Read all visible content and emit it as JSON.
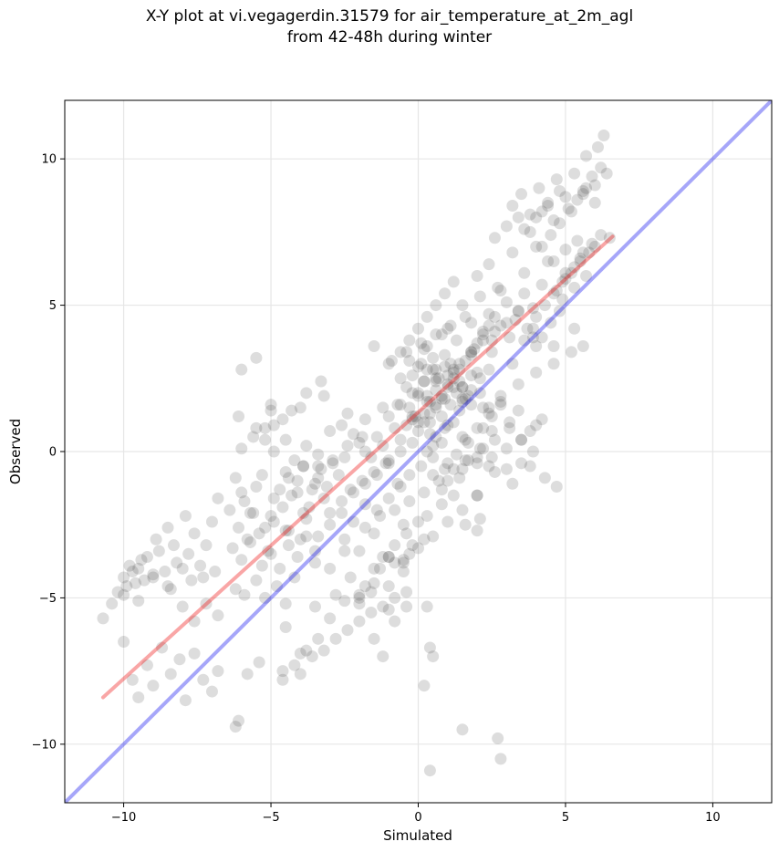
{
  "chart_data": {
    "type": "scatter",
    "title": "X-Y plot at vi.vegagerdin.31579 for air_temperature_at_2m_agl",
    "subtitle": "from 42-48h during winter",
    "xlabel": "Simulated",
    "ylabel": "Observed",
    "xlim": [
      -12,
      12
    ],
    "ylim": [
      -12,
      12
    ],
    "xticks": [
      -10,
      -5,
      0,
      5,
      10
    ],
    "yticks": [
      -10,
      -5,
      0,
      5,
      10
    ],
    "xtick_labels": [
      "−10",
      "−5",
      "0",
      "5",
      "10"
    ],
    "ytick_labels": [
      "−10",
      "−5",
      "0",
      "5",
      "10"
    ],
    "grid": true,
    "point_color": "#333333",
    "identity_line": {
      "x": [
        -12,
        12
      ],
      "y": [
        -12,
        12
      ],
      "color": "#0000ee"
    },
    "fit_line": {
      "x": [
        -10.7,
        6.6
      ],
      "y": [
        -8.4,
        7.35
      ],
      "color": "#ee0000"
    },
    "points_x": [
      -10.7,
      -10.4,
      -10.2,
      -10.0,
      -9.9,
      -9.8,
      -9.7,
      -9.6,
      -9.5,
      -9.4,
      -9.3,
      -9.2,
      -9.0,
      -8.9,
      -8.8,
      -8.6,
      -8.5,
      -8.4,
      -8.3,
      -8.2,
      -8.0,
      -7.9,
      -7.8,
      -7.7,
      -7.6,
      -7.4,
      -7.3,
      -7.2,
      -7.0,
      -6.9,
      -6.8,
      -10.0,
      -9.7,
      -9.5,
      -9.2,
      -9.0,
      -8.7,
      -8.4,
      -8.1,
      -7.9,
      -7.6,
      -7.3,
      -7.0,
      -6.8,
      -10.0,
      -9.5,
      -9.0,
      -8.5,
      -8.0,
      -7.6,
      -7.2,
      -6.8,
      -6.2,
      -6.0,
      -5.9,
      -5.7,
      -5.5,
      -5.3,
      -5.2,
      -5.0,
      -4.9,
      -4.7,
      -4.5,
      -4.3,
      -4.1,
      -3.9,
      -3.7,
      -3.5,
      -3.3,
      -3.1,
      -2.9,
      -2.7,
      -2.5,
      -6.4,
      -6.1,
      -5.8,
      -5.6,
      -5.4,
      -5.1,
      -4.9,
      -4.6,
      -4.4,
      -4.1,
      -3.9,
      -3.6,
      -3.4,
      -3.2,
      -6.0,
      -5.6,
      -5.2,
      -4.9,
      -4.5,
      -4.2,
      -3.8,
      -3.4,
      -3.0,
      -2.6,
      -6.3,
      -6.0,
      -5.7,
      -5.3,
      -5.0,
      -4.7,
      -4.4,
      -4.1,
      -3.8,
      -3.5,
      -6.2,
      -5.9,
      -5.5,
      -5.2,
      -4.8,
      -4.5,
      -4.2,
      -6.1,
      -5.0,
      -4.0,
      -3.2,
      -2.4,
      -1.8,
      -1.2,
      -0.7,
      -0.2,
      0.3,
      -2.2,
      -2.0,
      -1.8,
      -1.6,
      -1.4,
      -1.2,
      -1.0,
      -0.8,
      -0.6,
      -0.4,
      -0.2,
      0.0,
      0.2,
      0.4,
      0.6,
      0.8,
      1.0,
      -2.3,
      -1.9,
      -1.5,
      -1.1,
      -0.7,
      -0.3,
      0.1,
      0.5,
      0.9,
      1.3,
      1.7,
      -1.8,
      -1.3,
      -0.8,
      -0.3,
      0.2,
      0.7,
      1.2,
      1.7,
      2.2,
      -2.5,
      -2.0,
      -1.5,
      -1.0,
      -0.5,
      -0.2,
      0.3,
      0.8,
      -1.5,
      -1.0,
      -0.5,
      0.0,
      0.5,
      1.0,
      1.5,
      2.0,
      -0.4,
      -0.2,
      0.0,
      0.1,
      0.2,
      0.3,
      0.4,
      0.5,
      0.6,
      0.7,
      0.8,
      0.9,
      1.0,
      1.1,
      1.2,
      1.3,
      1.4,
      1.5,
      1.6,
      -0.3,
      0.0,
      0.3,
      0.6,
      0.9,
      1.2,
      1.5,
      1.8,
      2.1,
      2.4,
      -0.6,
      -0.3,
      0.0,
      0.3,
      0.6,
      0.9,
      1.2,
      1.5,
      1.8,
      -0.1,
      0.2,
      0.5,
      0.8,
      1.1,
      1.4,
      1.7,
      2.0,
      0.0,
      0.4,
      0.8,
      1.2,
      1.6,
      2.0,
      2.4,
      2.8,
      0.5,
      1.0,
      1.5,
      2.0,
      2.5,
      3.0,
      3.5,
      4.0,
      1.0,
      1.3,
      1.6,
      1.9,
      2.2,
      2.5,
      2.8,
      3.1,
      3.4,
      3.7,
      4.0,
      1.5,
      1.8,
      2.1,
      2.4,
      2.7,
      3.0,
      3.3,
      3.6,
      3.9,
      4.2,
      2.0,
      2.4,
      2.8,
      3.2,
      3.6,
      4.0,
      4.4,
      2.6,
      3.0,
      3.4,
      3.8,
      4.2,
      4.6,
      1.8,
      2.5,
      3.2,
      3.9,
      4.6,
      5.3,
      3.2,
      3.5,
      3.8,
      4.1,
      4.4,
      4.7,
      5.0,
      5.3,
      5.6,
      5.9,
      6.2,
      3.6,
      4.0,
      4.4,
      4.8,
      5.2,
      5.6,
      6.0,
      6.4,
      4.2,
      4.5,
      4.8,
      5.1,
      5.4,
      5.7,
      6.0,
      4.6,
      5.0,
      5.4,
      5.8,
      6.2,
      5.0,
      5.5,
      6.0,
      6.5,
      5.7,
      6.1,
      6.3,
      4.7,
      5.0,
      5.3,
      5.6,
      5.9,
      4.9,
      5.3,
      5.7,
      4.0,
      4.3,
      4.6,
      4.9,
      5.2,
      5.5,
      3.6,
      3.9,
      4.2,
      4.5,
      4.8,
      2.2,
      2.8,
      3.4,
      4.0,
      4.6,
      5.2,
      5.6,
      2.2,
      2.5,
      2.8,
      3.1,
      3.4,
      3.8,
      4.2,
      3.5,
      3.9,
      4.3,
      4.7,
      -1.0,
      -0.6,
      -0.2,
      0.2,
      0.6,
      1.0,
      1.4,
      1.8,
      2.2,
      2.6,
      3.0,
      3.4,
      0.5,
      1.0,
      1.5,
      2.0,
      2.5,
      3.0,
      3.5,
      0.8,
      1.4,
      2.0,
      2.6,
      3.2,
      3.8,
      -4.0,
      -3.6,
      -3.2,
      -2.8,
      -2.4,
      -2.0,
      -1.6,
      -1.2,
      -0.8,
      -0.4,
      -3.5,
      -3.0,
      -2.5,
      -2.0,
      -1.5,
      -1.0,
      -0.5,
      -2.8,
      -2.3,
      -1.8,
      -1.3,
      -0.8,
      -0.3,
      0.2,
      0.3,
      0.4,
      0.2,
      0.5,
      -1.0,
      -1.5,
      -2.0,
      -0.5,
      -3.0,
      -2.5,
      -3.5,
      -4.0,
      -4.5,
      -3.8,
      -3.4,
      -3.0,
      -2.6,
      -2.2,
      -1.8,
      -1.4,
      -1.0,
      -0.6,
      -4.4,
      -3.9,
      -3.4,
      -2.9,
      -2.4,
      -1.9,
      -5.5,
      -5.2,
      -4.9,
      -4.6,
      -4.3,
      -5.0,
      -4.6,
      -4.2,
      -3.8,
      -3.4,
      -1.2,
      -0.8,
      -0.4,
      -2.0,
      -1.6,
      -1.2,
      -0.8,
      -0.4,
      0.0,
      -3.0,
      -2.6,
      -2.2,
      -1.8,
      -1.4,
      -1.0,
      -0.6,
      -0.2,
      0.3,
      0.6,
      0.9,
      1.2,
      1.6,
      2.0,
      2.4,
      2.1,
      1.5,
      2.8,
      0.4,
      2.7,
      -6.1,
      -6.2,
      -5.8,
      -5.4,
      -4.6,
      -4.5,
      -4.0,
      -3.8,
      -3.3,
      -6.0,
      -5.5,
      -1.5,
      -1.0,
      -0.6,
      -0.3,
      0.0,
      0.3,
      0.6,
      0.9,
      1.2,
      1.5,
      1.8,
      2.1,
      2.4,
      -0.9,
      -0.4,
      0.1,
      0.6,
      1.1,
      1.6,
      2.1,
      2.6,
      3.1,
      0.2,
      0.4,
      0.6,
      0.8,
      1.0,
      1.2,
      1.4,
      1.6,
      1.8,
      2.0,
      2.2,
      2.4,
      2.6,
      2.8,
      3.0,
      3.2,
      3.4
    ],
    "points_y": [
      -5.7,
      -5.2,
      -4.8,
      -4.3,
      -4.6,
      -3.9,
      -4.1,
      -4.5,
      -4.0,
      -3.7,
      -4.4,
      -3.6,
      -4.2,
      -3.0,
      -3.4,
      -4.1,
      -2.6,
      -4.7,
      -3.2,
      -3.8,
      -4.0,
      -2.2,
      -3.5,
      -4.4,
      -2.8,
      -3.9,
      -4.3,
      -3.2,
      -2.4,
      -4.1,
      -1.6,
      -6.5,
      -7.8,
      -8.4,
      -7.3,
      -8.0,
      -6.7,
      -7.6,
      -7.1,
      -8.5,
      -6.9,
      -7.8,
      -8.2,
      -7.5,
      -4.9,
      -5.1,
      -4.3,
      -4.6,
      -5.3,
      -5.8,
      -5.2,
      -5.6,
      -0.9,
      -1.4,
      -1.7,
      -2.1,
      -1.2,
      -0.8,
      -2.6,
      -2.2,
      -1.6,
      -1.3,
      -0.7,
      -1.5,
      -1.0,
      -0.5,
      -1.9,
      -1.1,
      -0.6,
      -1.2,
      -0.4,
      -0.8,
      -0.2,
      -2.0,
      -2.6,
      -3.0,
      -2.1,
      -2.8,
      -3.4,
      -2.4,
      -1.9,
      -2.7,
      -1.4,
      -2.1,
      -1.3,
      -0.9,
      -1.6,
      0.1,
      0.5,
      0.8,
      0.0,
      0.4,
      -0.3,
      0.2,
      -0.5,
      0.7,
      0.9,
      -3.3,
      -3.7,
      -3.1,
      -3.9,
      -3.5,
      -4.0,
      -3.2,
      -3.6,
      -2.9,
      -3.4,
      -4.7,
      -4.9,
      -4.4,
      -5.0,
      -4.6,
      -5.2,
      -4.3,
      1.2,
      1.4,
      1.5,
      1.9,
      1.3,
      1.1,
      1.5,
      1.6,
      1.2,
      1.7,
      0.6,
      0.3,
      0.0,
      -0.2,
      0.5,
      0.2,
      -0.3,
      0.8,
      0.4,
      0.9,
      1.1,
      0.7,
      1.3,
      1.0,
      1.5,
      1.2,
      0.9,
      -1.3,
      -1.0,
      -0.7,
      -0.4,
      -1.1,
      -0.8,
      -0.5,
      -0.2,
      -0.6,
      -0.1,
      0.3,
      -2.6,
      -2.2,
      -2.0,
      -1.7,
      -1.4,
      -1.0,
      -0.6,
      -0.3,
      0.1,
      -3.0,
      -3.4,
      -2.8,
      -3.6,
      -2.5,
      -3.2,
      -2.2,
      -1.8,
      -4.0,
      -3.6,
      -3.8,
      -3.3,
      -2.9,
      -2.4,
      -2.0,
      -1.5,
      2.2,
      2.6,
      1.9,
      3.0,
      2.4,
      2.8,
      1.7,
      3.2,
      2.1,
      2.5,
      1.8,
      2.9,
      2.3,
      1.6,
      2.7,
      2.0,
      1.4,
      2.2,
      1.8,
      1.5,
      2.9,
      1.9,
      2.5,
      3.3,
      2.2,
      1.7,
      2.6,
      2.0,
      1.5,
      2.5,
      3.1,
      2.0,
      3.6,
      2.4,
      1.8,
      2.8,
      2.2,
      1.6,
      1.2,
      3.5,
      2.8,
      4.0,
      3.0,
      2.4,
      1.9,
      2.7,
      1.0,
      0.6,
      0.3,
      1.0,
      0.4,
      0.8,
      1.3,
      1.7,
      0.2,
      -0.4,
      0.5,
      -0.2,
      0.7,
      -0.6,
      0.4,
      0.9,
      4.2,
      3.8,
      4.6,
      3.5,
      4.1,
      3.4,
      4.3,
      3.9,
      4.8,
      4.2,
      3.6,
      5.0,
      4.4,
      5.3,
      4.7,
      5.6,
      5.1,
      4.5,
      5.4,
      4.9,
      5.7,
      6.0,
      6.4,
      5.5,
      6.8,
      6.1,
      7.0,
      6.5,
      7.3,
      7.7,
      8.0,
      7.5,
      8.2,
      7.9,
      3.3,
      3.8,
      3.0,
      3.9,
      3.6,
      4.2,
      8.4,
      8.8,
      8.1,
      9.0,
      8.5,
      9.3,
      8.7,
      9.5,
      8.9,
      9.4,
      9.7,
      7.6,
      8.0,
      8.4,
      8.9,
      8.2,
      8.8,
      9.1,
      9.5,
      7.0,
      7.4,
      7.8,
      8.3,
      8.6,
      9.0,
      8.5,
      6.5,
      6.9,
      7.2,
      6.8,
      7.4,
      6.1,
      6.6,
      7.0,
      7.3,
      10.1,
      10.4,
      10.8,
      5.5,
      5.9,
      6.3,
      6.8,
      7.1,
      5.2,
      5.6,
      6.0,
      4.6,
      5.0,
      5.4,
      5.8,
      6.1,
      6.5,
      3.8,
      4.2,
      3.9,
      4.4,
      4.8,
      1.5,
      1.9,
      2.3,
      2.7,
      3.0,
      3.4,
      3.6,
      0.8,
      1.2,
      1.6,
      1.0,
      1.4,
      0.7,
      1.1,
      -0.4,
      0.0,
      -0.9,
      -1.2,
      1.2,
      1.6,
      2.0,
      2.4,
      2.8,
      2.6,
      3.0,
      3.4,
      3.8,
      4.1,
      4.4,
      4.8,
      -0.8,
      -1.0,
      -0.6,
      -0.4,
      -0.2,
      0.1,
      0.4,
      -1.3,
      -0.9,
      -1.5,
      -0.7,
      -1.1,
      -0.5,
      -7.6,
      -7.0,
      -6.8,
      -6.4,
      -6.1,
      -5.8,
      -5.5,
      -5.3,
      -5.0,
      -4.8,
      -5.3,
      -5.7,
      -5.1,
      -4.9,
      -4.5,
      -4.6,
      -4.1,
      -4.9,
      -4.3,
      -4.6,
      -4.0,
      -3.8,
      -3.5,
      -3.0,
      -5.3,
      -6.7,
      -8.0,
      -7.0,
      -5.4,
      -6.4,
      -5.2,
      -3.7,
      -4.0,
      -3.4,
      -3.8,
      -3.0,
      -2.7,
      -2.3,
      -2.9,
      -2.5,
      -2.1,
      -2.4,
      -1.8,
      -2.0,
      -1.6,
      -1.2,
      -0.9,
      -0.5,
      -0.1,
      -0.3,
      0.2,
      0.5,
      0.8,
      0.4,
      0.9,
      1.1,
      1.4,
      1.6,
      -7.8,
      -7.3,
      -6.8,
      -6.4,
      -7.0,
      -5.8,
      -5.3,
      -5.0,
      -4.8,
      -3.6,
      -3.2,
      -2.8,
      -2.4,
      -2.1,
      -1.7,
      -1.4,
      -1.1,
      -0.8,
      -0.4,
      0.0,
      0.3,
      0.0,
      0.5,
      0.8,
      -1.5,
      -2.5,
      -2.7,
      -0.5,
      -2.3,
      -9.5,
      -10.5,
      -10.9,
      -9.8,
      -9.2,
      -9.4,
      -7.6,
      -7.2,
      -7.5,
      -6.0,
      -6.9,
      2.0,
      2.4,
      2.8,
      3.2,
      3.6,
      3.0,
      3.4,
      3.8,
      4.2,
      4.6,
      5.0,
      5.4,
      5.8,
      1.8,
      2.1,
      2.5,
      2.8,
      3.1,
      3.4,
      3.7,
      4.0,
      4.3,
      -0.3,
      0.1,
      0.4,
      0.8,
      1.0,
      1.3,
      1.6,
      1.9,
      2.2,
      2.5,
      2.8,
      3.1,
      3.4,
      3.7,
      4.0,
      4.3,
      4.6
    ]
  }
}
